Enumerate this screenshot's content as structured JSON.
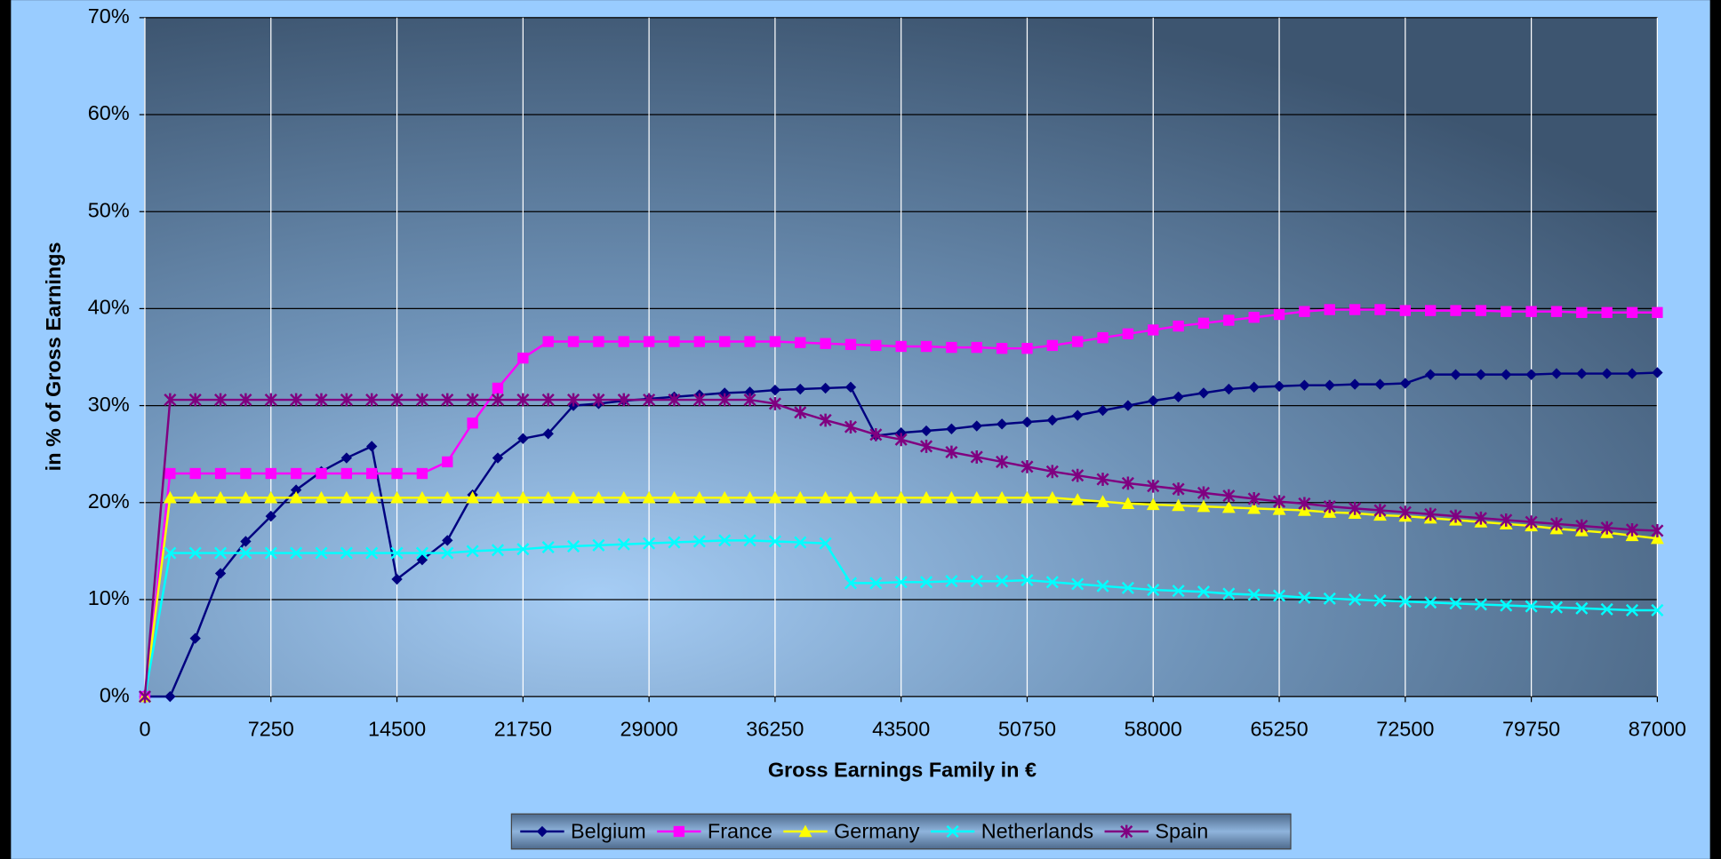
{
  "chart_data": {
    "type": "line",
    "xlabel": "Gross Earnings Family in €",
    "ylabel": "in % of Gross Earnings",
    "x": [
      0,
      1450,
      2900,
      4350,
      5800,
      7250,
      8700,
      10150,
      11600,
      13050,
      14500,
      15950,
      17400,
      18850,
      20300,
      21750,
      23200,
      24650,
      26100,
      27550,
      29000,
      30450,
      31900,
      33350,
      34800,
      36250,
      37700,
      39150,
      40600,
      42050,
      43500,
      44950,
      46400,
      47850,
      49300,
      50750,
      52200,
      53650,
      55100,
      56550,
      58000,
      59450,
      60900,
      62350,
      63800,
      65250,
      66700,
      68150,
      69600,
      71050,
      72500,
      73950,
      75400,
      76850,
      78300,
      79750,
      81200,
      82650,
      84100,
      85550,
      87000
    ],
    "xlim": [
      0,
      87000
    ],
    "xticks": [
      0,
      7250,
      14500,
      21750,
      29000,
      36250,
      43500,
      50750,
      58000,
      65250,
      72500,
      79750,
      87000
    ],
    "ylim": [
      0,
      70
    ],
    "yticks": [
      {
        "value": 0,
        "label": "0%"
      },
      {
        "value": 10,
        "label": "10%"
      },
      {
        "value": 20,
        "label": "20%"
      },
      {
        "value": 30,
        "label": "30%"
      },
      {
        "value": 40,
        "label": "40%"
      },
      {
        "value": 50,
        "label": "50%"
      },
      {
        "value": 60,
        "label": "60%"
      },
      {
        "value": 70,
        "label": "70%"
      }
    ],
    "grid": true,
    "legend": "bottom",
    "series": [
      {
        "name": "Belgium",
        "color": "#000080",
        "marker": "diamond",
        "values": [
          0,
          0,
          6,
          12.7,
          16,
          18.6,
          21.3,
          23.2,
          24.6,
          25.8,
          12.1,
          14.1,
          16.1,
          20.8,
          24.6,
          26.6,
          27.1,
          30,
          30.2,
          30.5,
          30.7,
          30.9,
          31.1,
          31.3,
          31.4,
          31.6,
          31.7,
          31.8,
          31.9,
          26.9,
          27.2,
          27.4,
          27.6,
          27.9,
          28.1,
          28.3,
          28.5,
          29,
          29.5,
          30,
          30.5,
          30.9,
          31.3,
          31.7,
          31.9,
          32,
          32.1,
          32.1,
          32.2,
          32.2,
          32.3,
          33.2,
          33.2,
          33.2,
          33.2,
          33.2,
          33.3,
          33.3,
          33.3,
          33.3,
          33.4
        ]
      },
      {
        "name": "France",
        "color": "#ff00ff",
        "marker": "square",
        "values": [
          0,
          23,
          23,
          23,
          23,
          23,
          23,
          23,
          23,
          23,
          23,
          23,
          24.2,
          28.2,
          31.8,
          34.9,
          36.6,
          36.6,
          36.6,
          36.6,
          36.6,
          36.6,
          36.6,
          36.6,
          36.6,
          36.6,
          36.5,
          36.4,
          36.3,
          36.2,
          36.1,
          36.1,
          36.0,
          36.0,
          35.9,
          35.9,
          36.2,
          36.6,
          37.0,
          37.4,
          37.8,
          38.2,
          38.5,
          38.8,
          39.1,
          39.4,
          39.7,
          39.9,
          39.9,
          39.9,
          39.8,
          39.8,
          39.8,
          39.8,
          39.7,
          39.7,
          39.7,
          39.6,
          39.6,
          39.6,
          39.6
        ]
      },
      {
        "name": "Germany",
        "color": "#ffff00",
        "marker": "triangle",
        "values": [
          0,
          20.5,
          20.5,
          20.5,
          20.5,
          20.5,
          20.5,
          20.5,
          20.5,
          20.5,
          20.5,
          20.5,
          20.5,
          20.5,
          20.5,
          20.5,
          20.5,
          20.5,
          20.5,
          20.5,
          20.5,
          20.5,
          20.5,
          20.5,
          20.5,
          20.5,
          20.5,
          20.5,
          20.5,
          20.5,
          20.5,
          20.5,
          20.5,
          20.5,
          20.5,
          20.5,
          20.5,
          20.3,
          20.1,
          19.9,
          19.8,
          19.7,
          19.6,
          19.5,
          19.4,
          19.3,
          19.2,
          19.0,
          18.9,
          18.7,
          18.6,
          18.4,
          18.2,
          18.0,
          17.8,
          17.6,
          17.3,
          17.1,
          16.9,
          16.6,
          16.3
        ]
      },
      {
        "name": "Netherlands",
        "color": "#00ffff",
        "marker": "x",
        "values": [
          0,
          14.8,
          14.8,
          14.8,
          14.8,
          14.8,
          14.8,
          14.8,
          14.8,
          14.8,
          14.8,
          14.8,
          14.8,
          15.0,
          15.1,
          15.2,
          15.4,
          15.5,
          15.6,
          15.7,
          15.8,
          15.9,
          16.0,
          16.1,
          16.1,
          16.0,
          15.9,
          15.8,
          11.7,
          11.7,
          11.8,
          11.8,
          11.9,
          11.9,
          11.9,
          12.0,
          11.8,
          11.6,
          11.4,
          11.2,
          11.0,
          10.9,
          10.8,
          10.6,
          10.5,
          10.4,
          10.2,
          10.1,
          10.0,
          9.9,
          9.8,
          9.7,
          9.6,
          9.5,
          9.4,
          9.3,
          9.2,
          9.1,
          9.0,
          8.9,
          8.9
        ]
      },
      {
        "name": "Spain",
        "color": "#800080",
        "marker": "star",
        "values": [
          0,
          30.6,
          30.6,
          30.6,
          30.6,
          30.6,
          30.6,
          30.6,
          30.6,
          30.6,
          30.6,
          30.6,
          30.6,
          30.6,
          30.6,
          30.6,
          30.6,
          30.6,
          30.6,
          30.6,
          30.6,
          30.6,
          30.6,
          30.6,
          30.6,
          30.2,
          29.3,
          28.5,
          27.8,
          27.0,
          26.5,
          25.8,
          25.2,
          24.7,
          24.2,
          23.7,
          23.2,
          22.8,
          22.4,
          22.0,
          21.7,
          21.4,
          21.0,
          20.7,
          20.4,
          20.1,
          19.9,
          19.6,
          19.4,
          19.2,
          19.0,
          18.8,
          18.6,
          18.4,
          18.2,
          18.0,
          17.8,
          17.6,
          17.4,
          17.2,
          17.1
        ]
      }
    ]
  }
}
